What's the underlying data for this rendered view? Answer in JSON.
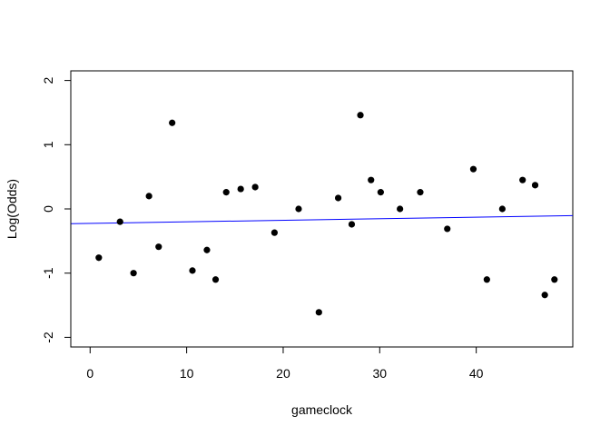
{
  "chart_data": {
    "type": "scatter",
    "title": "",
    "xlabel": "gameclock",
    "ylabel": "Log(Odds)",
    "xlim": [
      -2,
      50
    ],
    "ylim": [
      -2.15,
      2.15
    ],
    "x_ticks": [
      0,
      10,
      20,
      30,
      40
    ],
    "x_tick_labels": [
      "0",
      "10",
      "20",
      "30",
      "40"
    ],
    "y_ticks": [
      -2,
      -1,
      0,
      1,
      2
    ],
    "y_tick_labels": [
      "-2",
      "-1",
      "0",
      "1",
      "2"
    ],
    "grid": false,
    "legend": "none",
    "point_color": "#000000",
    "series": [
      {
        "x": [
          0.9,
          3.1,
          4.5,
          6.1,
          7.1,
          8.5,
          10.6,
          12.1,
          13.0,
          14.1,
          15.6,
          17.1,
          19.1,
          21.6,
          23.7,
          25.7,
          27.1,
          28.0,
          29.1,
          30.1,
          32.1,
          34.2,
          37.0,
          39.7,
          41.1,
          42.7,
          44.8,
          46.1,
          47.1,
          48.1
        ],
        "y": [
          -0.76,
          -0.2,
          -1.0,
          0.2,
          -0.59,
          1.34,
          -0.96,
          -0.64,
          -1.1,
          0.26,
          0.31,
          0.34,
          -0.37,
          0.0,
          -1.61,
          0.17,
          -0.24,
          1.46,
          0.45,
          0.26,
          0.0,
          0.26,
          -0.31,
          0.62,
          -1.1,
          0.0,
          0.45,
          0.37,
          -1.34,
          -1.1
        ]
      }
    ],
    "fit_line": {
      "color": "#0000ff",
      "x": [
        -2,
        50
      ],
      "y": [
        -0.23,
        -0.105
      ]
    }
  }
}
